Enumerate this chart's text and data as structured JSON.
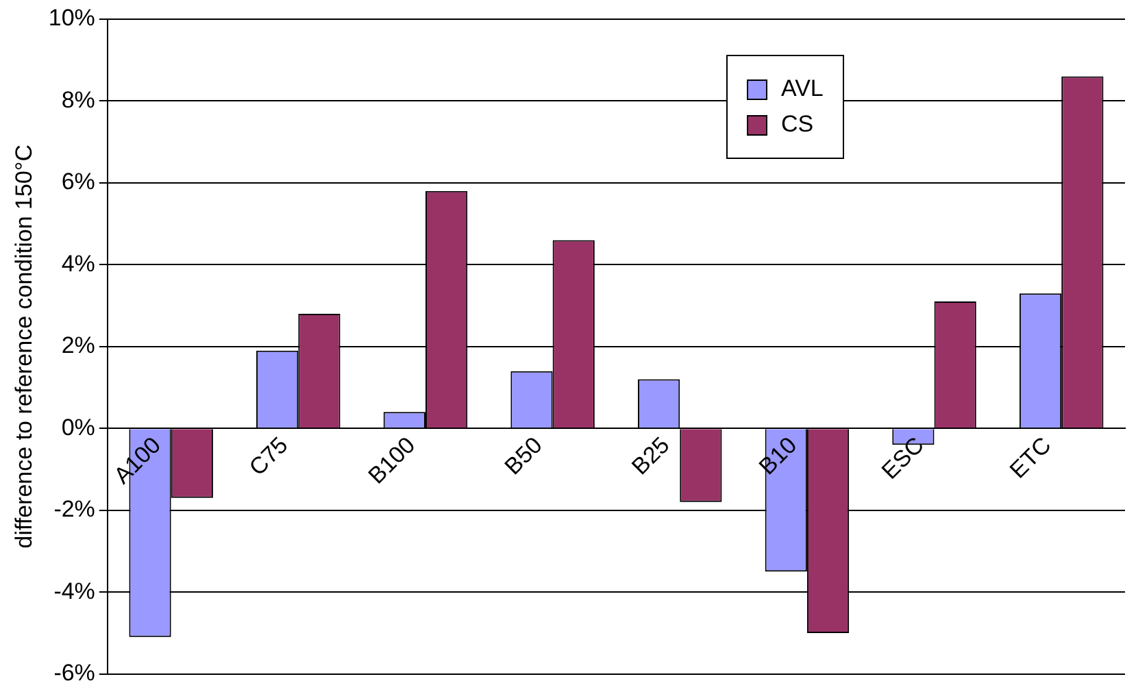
{
  "chart_data": {
    "type": "bar",
    "ylabel": "difference to reference condition 150°C",
    "categories": [
      "A100",
      "C75",
      "B100",
      "B50",
      "B25",
      "B10",
      "ESC",
      "ETC"
    ],
    "series": [
      {
        "name": "AVL",
        "color": "#9999ff",
        "values": [
          -5.1,
          1.9,
          0.4,
          1.4,
          1.2,
          -3.5,
          -0.4,
          3.3
        ]
      },
      {
        "name": "CS",
        "color": "#993366",
        "values": [
          -1.7,
          2.8,
          5.8,
          4.6,
          -1.8,
          -5.0,
          3.1,
          8.6
        ]
      }
    ],
    "ylim": [
      -6,
      10
    ],
    "yticks": [
      {
        "value": -6,
        "label": "-6%"
      },
      {
        "value": -4,
        "label": "-4%"
      },
      {
        "value": -2,
        "label": "-2%"
      },
      {
        "value": 0,
        "label": "0%"
      },
      {
        "value": 2,
        "label": "2%"
      },
      {
        "value": 4,
        "label": "4%"
      },
      {
        "value": 6,
        "label": "6%"
      },
      {
        "value": 8,
        "label": "8%"
      },
      {
        "value": 10,
        "label": "10%"
      }
    ],
    "grid": "y",
    "legend": "top right"
  }
}
